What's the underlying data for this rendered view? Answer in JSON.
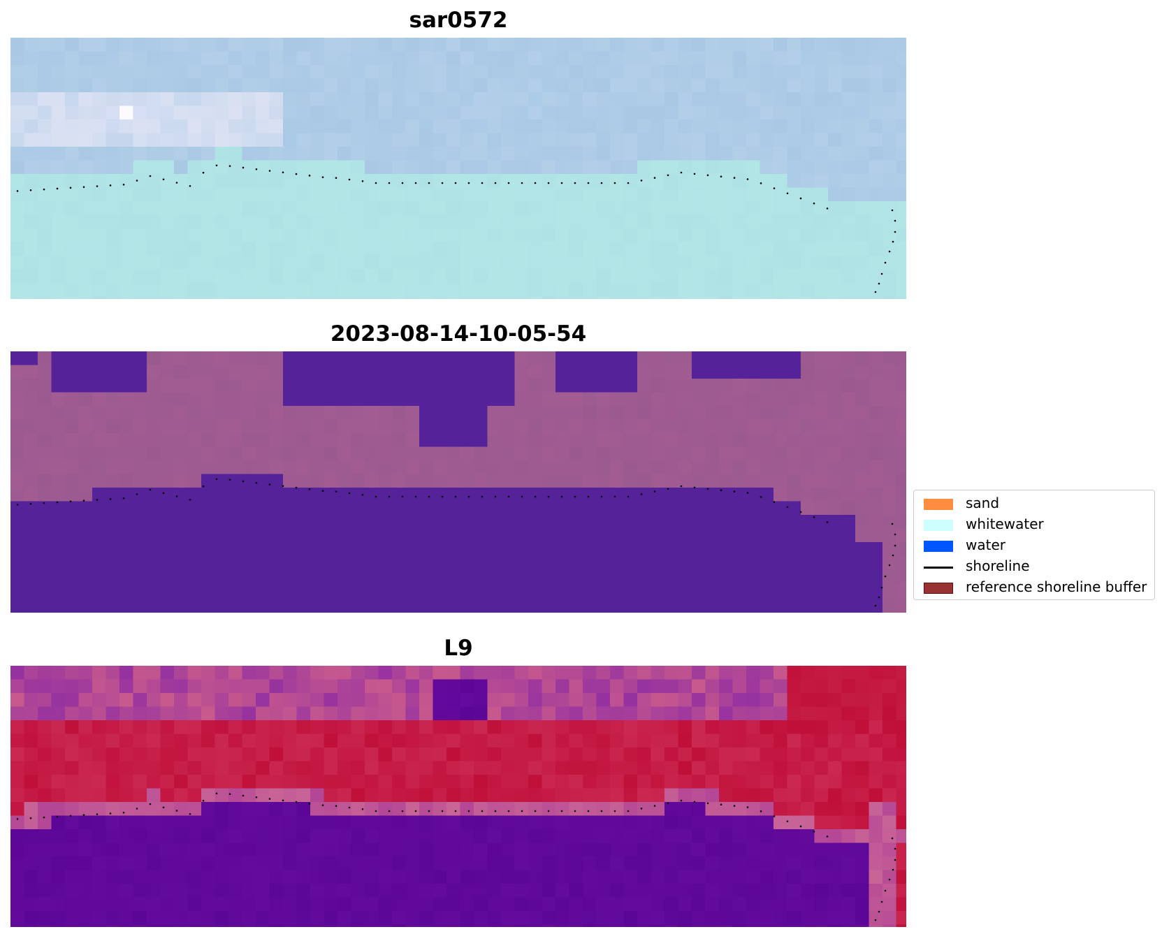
{
  "panels": [
    {
      "title": "sar0572",
      "style": "rgb"
    },
    {
      "title": "2023-08-14-10-05-54",
      "style": "classified"
    },
    {
      "title": "L9",
      "style": "index"
    }
  ],
  "legend": {
    "items": [
      {
        "label": "sand",
        "color": "#ff8c3f",
        "kind": "patch"
      },
      {
        "label": "whitewater",
        "color": "#ccffff",
        "kind": "patch"
      },
      {
        "label": "water",
        "color": "#0055ff",
        "kind": "patch"
      },
      {
        "label": "shoreline",
        "color": "#000000",
        "kind": "line"
      },
      {
        "label": "reference shoreline buffer",
        "color": "#993333",
        "kind": "patch"
      }
    ]
  },
  "colors": {
    "rgb_land": "#a8c8e4",
    "rgb_sea": "#b2e6e6",
    "classified_water": "#55229a",
    "classified_land": "#9a5a90",
    "index_high": "#c0103a",
    "index_low": "#5c0698",
    "shoreline": "#000000"
  }
}
